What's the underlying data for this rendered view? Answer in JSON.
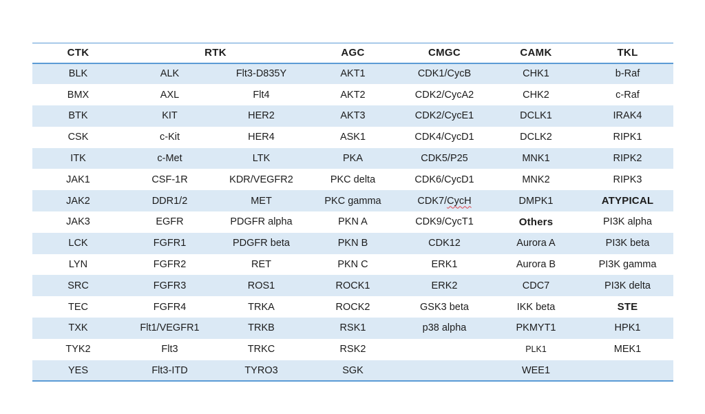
{
  "page": {
    "background": "#ffffff",
    "description": "Kinase family table"
  },
  "colors": {
    "row_alt": "#dbe9f5",
    "border_blue": "#5b9bd5",
    "text": "#1c1c1c",
    "spellcheck_red": "#e0434b"
  },
  "table": {
    "header": [
      {
        "label": "CTK",
        "span": 1
      },
      {
        "label": "RTK",
        "span": 2
      },
      {
        "label": "AGC",
        "span": 1
      },
      {
        "label": "CMGC",
        "span": 1
      },
      {
        "label": "CAMK",
        "span": 1
      },
      {
        "label": "TKL",
        "span": 1
      }
    ],
    "rows": [
      [
        "BLK",
        "ALK",
        "Flt3-D835Y",
        "AKT1",
        "CDK1/CycB",
        "CHK1",
        "b-Raf"
      ],
      [
        "BMX",
        "AXL",
        "Flt4",
        "AKT2",
        "CDK2/CycA2",
        "CHK2",
        "c-Raf"
      ],
      [
        "BTK",
        "KIT",
        "HER2",
        "AKT3",
        "CDK2/CycE1",
        "DCLK1",
        "IRAK4"
      ],
      [
        "CSK",
        "c-Kit",
        "HER4",
        "ASK1",
        "CDK4/CycD1",
        "DCLK2",
        "RIPK1"
      ],
      [
        "ITK",
        "c-Met",
        "LTK",
        "PKA",
        "CDK5/P25",
        "MNK1",
        "RIPK2"
      ],
      [
        "JAK1",
        "CSF-1R",
        "KDR/VEGFR2",
        "PKC delta",
        "CDK6/CycD1",
        "MNK2",
        "RIPK3"
      ],
      [
        "JAK2",
        "DDR1/2",
        "MET",
        "PKC gamma",
        {
          "text": "CDK7/CycH",
          "spellcheck": "CycH"
        },
        "DMPK1",
        {
          "text": "ATYPICAL",
          "bold": true
        }
      ],
      [
        "JAK3",
        "EGFR",
        "PDGFR alpha",
        "PKN A",
        "CDK9/CycT1",
        {
          "text": "Others",
          "bold": true
        },
        "PI3K alpha"
      ],
      [
        "LCK",
        "FGFR1",
        "PDGFR beta",
        "PKN B",
        "CDK12",
        "Aurora A",
        "PI3K beta"
      ],
      [
        "LYN",
        "FGFR2",
        "RET",
        "PKN C",
        "ERK1",
        "Aurora B",
        "PI3K gamma"
      ],
      [
        "SRC",
        "FGFR3",
        "ROS1",
        "ROCK1",
        "ERK2",
        "CDC7",
        "PI3K delta"
      ],
      [
        "TEC",
        "FGFR4",
        "TRKA",
        "ROCK2",
        "GSK3 beta",
        "IKK beta",
        {
          "text": "STE",
          "bold": true
        }
      ],
      [
        "TXK",
        "Flt1/VEGFR1",
        "TRKB",
        "RSK1",
        "p38 alpha",
        "PKMYT1",
        "HPK1"
      ],
      [
        "TYK2",
        "Flt3",
        "TRKC",
        "RSK2",
        "",
        {
          "text": "PLK1",
          "small": true
        },
        "MEK1"
      ],
      [
        "YES",
        "Flt3-ITD",
        "TYRO3",
        "SGK",
        "",
        "WEE1",
        ""
      ]
    ]
  }
}
